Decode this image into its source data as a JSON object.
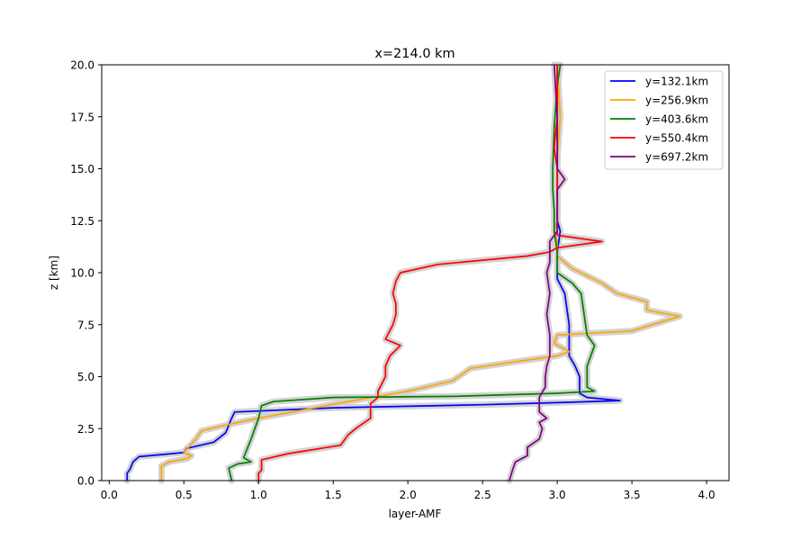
{
  "chart_data": {
    "type": "line",
    "title": "x=214.0 km",
    "xlabel": "layer-AMF",
    "ylabel": "z [km]",
    "xlim": [
      -0.05,
      4.15
    ],
    "ylim": [
      0,
      20
    ],
    "xticks": [
      0.0,
      0.5,
      1.0,
      1.5,
      2.0,
      2.5,
      3.0,
      3.5,
      4.0
    ],
    "xtick_labels": [
      "0.0",
      "0.5",
      "1.0",
      "1.5",
      "2.0",
      "2.5",
      "3.0",
      "3.5",
      "4.0"
    ],
    "yticks": [
      0.0,
      2.5,
      5.0,
      7.5,
      10.0,
      12.5,
      15.0,
      17.5,
      20.0
    ],
    "ytick_labels": [
      "0.0",
      "2.5",
      "5.0",
      "7.5",
      "10.0",
      "12.5",
      "15.0",
      "17.5",
      "20.0"
    ],
    "grid": false,
    "legend_position": "top-right",
    "uncertainty_band_color": "#d3d3d3",
    "series": [
      {
        "name": "y=132.1km",
        "color": "#0000ff",
        "points": [
          [
            0.12,
            0
          ],
          [
            0.12,
            0.35
          ],
          [
            0.14,
            0.55
          ],
          [
            0.16,
            0.9
          ],
          [
            0.2,
            1.15
          ],
          [
            0.35,
            1.25
          ],
          [
            0.5,
            1.35
          ],
          [
            0.52,
            1.55
          ],
          [
            0.7,
            1.85
          ],
          [
            0.78,
            2.3
          ],
          [
            0.82,
            3.0
          ],
          [
            0.84,
            3.3
          ],
          [
            1.5,
            3.5
          ],
          [
            2.5,
            3.65
          ],
          [
            3.0,
            3.75
          ],
          [
            3.42,
            3.85
          ],
          [
            3.2,
            4.0
          ],
          [
            3.15,
            4.2
          ],
          [
            3.15,
            5.0
          ],
          [
            3.12,
            5.5
          ],
          [
            3.08,
            6.0
          ],
          [
            3.08,
            6.5
          ],
          [
            3.08,
            7.5
          ],
          [
            3.06,
            8.5
          ],
          [
            3.05,
            9.0
          ],
          [
            3.0,
            9.7
          ],
          [
            3.0,
            10.5
          ],
          [
            3.0,
            11.0
          ],
          [
            3.02,
            12.0
          ],
          [
            3.0,
            12.5
          ],
          [
            3.0,
            15.0
          ],
          [
            3.0,
            17.5
          ],
          [
            3.0,
            20.0
          ]
        ]
      },
      {
        "name": "y=256.9km",
        "color": "#ffa500",
        "points": [
          [
            0.35,
            0
          ],
          [
            0.35,
            0.7
          ],
          [
            0.4,
            0.9
          ],
          [
            0.52,
            1.05
          ],
          [
            0.55,
            1.2
          ],
          [
            0.5,
            1.35
          ],
          [
            0.58,
            2.0
          ],
          [
            0.62,
            2.4
          ],
          [
            0.8,
            2.7
          ],
          [
            1.0,
            3.0
          ],
          [
            1.3,
            3.4
          ],
          [
            1.6,
            3.8
          ],
          [
            2.0,
            4.3
          ],
          [
            2.3,
            4.8
          ],
          [
            2.42,
            5.4
          ],
          [
            2.8,
            5.8
          ],
          [
            3.0,
            6.0
          ],
          [
            3.08,
            6.2
          ],
          [
            2.98,
            6.6
          ],
          [
            3.0,
            7.0
          ],
          [
            3.5,
            7.2
          ],
          [
            3.82,
            7.9
          ],
          [
            3.6,
            8.2
          ],
          [
            3.6,
            8.6
          ],
          [
            3.4,
            9.0
          ],
          [
            3.3,
            9.5
          ],
          [
            3.1,
            10.2
          ],
          [
            3.0,
            10.8
          ],
          [
            3.0,
            11.5
          ],
          [
            2.98,
            12.0
          ],
          [
            3.0,
            12.5
          ],
          [
            3.0,
            14.0
          ],
          [
            3.0,
            15.5
          ],
          [
            3.02,
            17.5
          ],
          [
            3.0,
            20.0
          ]
        ]
      },
      {
        "name": "y=403.6km",
        "color": "#008000",
        "points": [
          [
            0.82,
            0
          ],
          [
            0.8,
            0.6
          ],
          [
            0.86,
            0.8
          ],
          [
            0.95,
            0.9
          ],
          [
            0.9,
            1.1
          ],
          [
            0.95,
            2.0
          ],
          [
            1.0,
            3.0
          ],
          [
            1.02,
            3.6
          ],
          [
            1.1,
            3.8
          ],
          [
            1.5,
            4.0
          ],
          [
            2.3,
            4.05
          ],
          [
            3.0,
            4.2
          ],
          [
            3.25,
            4.3
          ],
          [
            3.2,
            4.5
          ],
          [
            3.2,
            5.0
          ],
          [
            3.2,
            5.5
          ],
          [
            3.25,
            6.5
          ],
          [
            3.2,
            7.0
          ],
          [
            3.18,
            8.0
          ],
          [
            3.16,
            9.0
          ],
          [
            3.1,
            9.5
          ],
          [
            3.0,
            10.0
          ],
          [
            3.0,
            10.5
          ],
          [
            3.0,
            11.0
          ],
          [
            2.98,
            12.0
          ],
          [
            2.98,
            13.0
          ],
          [
            2.97,
            14.0
          ],
          [
            2.97,
            15.0
          ],
          [
            2.98,
            17.0
          ],
          [
            3.0,
            19.0
          ],
          [
            3.02,
            20.0
          ]
        ]
      },
      {
        "name": "y=550.4km",
        "color": "#ff0000",
        "points": [
          [
            1.0,
            0
          ],
          [
            1.0,
            0.35
          ],
          [
            1.02,
            0.5
          ],
          [
            1.02,
            1.0
          ],
          [
            1.2,
            1.3
          ],
          [
            1.55,
            1.7
          ],
          [
            1.6,
            2.2
          ],
          [
            1.65,
            2.5
          ],
          [
            1.75,
            3.0
          ],
          [
            1.75,
            3.7
          ],
          [
            1.8,
            4.0
          ],
          [
            1.8,
            4.3
          ],
          [
            1.85,
            5.0
          ],
          [
            1.85,
            5.5
          ],
          [
            1.88,
            6.0
          ],
          [
            1.95,
            6.5
          ],
          [
            1.85,
            6.8
          ],
          [
            1.9,
            7.5
          ],
          [
            1.92,
            8.0
          ],
          [
            1.92,
            8.5
          ],
          [
            1.9,
            9.0
          ],
          [
            1.92,
            9.6
          ],
          [
            1.95,
            10.0
          ],
          [
            2.2,
            10.4
          ],
          [
            2.8,
            10.8
          ],
          [
            2.95,
            11.0
          ],
          [
            3.0,
            11.2
          ],
          [
            3.3,
            11.5
          ],
          [
            3.0,
            11.8
          ],
          [
            3.0,
            13.0
          ],
          [
            3.0,
            14.0
          ],
          [
            3.0,
            15.0
          ],
          [
            2.98,
            16.0
          ],
          [
            3.0,
            17.5
          ],
          [
            3.0,
            20.0
          ]
        ]
      },
      {
        "name": "y=697.2km",
        "color": "#800080",
        "points": [
          [
            2.68,
            0
          ],
          [
            2.7,
            0.5
          ],
          [
            2.72,
            0.9
          ],
          [
            2.8,
            1.2
          ],
          [
            2.8,
            1.6
          ],
          [
            2.88,
            2.0
          ],
          [
            2.9,
            2.5
          ],
          [
            2.88,
            2.8
          ],
          [
            2.93,
            3.0
          ],
          [
            2.88,
            3.3
          ],
          [
            2.88,
            3.6
          ],
          [
            2.88,
            4.0
          ],
          [
            2.92,
            4.5
          ],
          [
            2.92,
            5.0
          ],
          [
            2.93,
            5.5
          ],
          [
            2.95,
            6.0
          ],
          [
            2.95,
            7.0
          ],
          [
            2.93,
            8.0
          ],
          [
            2.95,
            9.0
          ],
          [
            2.93,
            10.0
          ],
          [
            2.95,
            10.5
          ],
          [
            2.95,
            11.0
          ],
          [
            2.95,
            11.5
          ],
          [
            3.0,
            12.0
          ],
          [
            3.0,
            13.0
          ],
          [
            3.0,
            14.0
          ],
          [
            3.05,
            14.5
          ],
          [
            3.0,
            15.0
          ],
          [
            3.0,
            17.5
          ],
          [
            2.98,
            20.0
          ]
        ]
      }
    ]
  }
}
